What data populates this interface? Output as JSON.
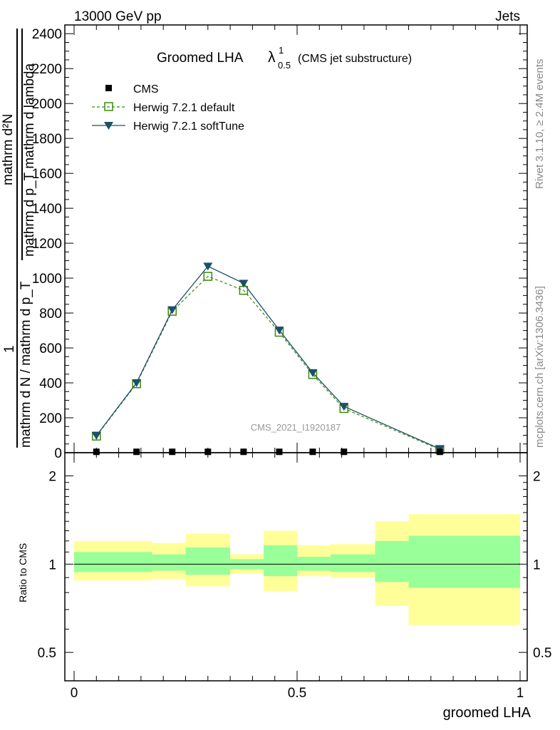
{
  "header": {
    "left": "13000 GeV pp",
    "right": "Jets"
  },
  "side": {
    "rivet": "Rivet 3.1.10, ≥ 2.4M events",
    "mcplots": "mcplots.cern.ch [arXiv:1306.3436]"
  },
  "chart_data": {
    "type": "line",
    "title_main": "Groomed LHA",
    "title_lambda": "λ",
    "title_sup": "1",
    "title_sub": "0.5",
    "title_note": "(CMS jet substructure)",
    "analysis_label": "CMS_2021_I1920187",
    "ylabel_num": "mathrm d²N",
    "ylabel_den": "mathrm d p_T mathrm d lambda",
    "ylabel_prefix": "1",
    "ylabel_prefix_den": "mathrm d N / mathrm d p_T",
    "xlabel": "groomed LHA",
    "ratio_ylabel": "Ratio to CMS",
    "xlim": [
      0,
      1
    ],
    "ylim": [
      0,
      2450
    ],
    "x_ticks": [
      "0",
      "0.5",
      "1"
    ],
    "y_ticks": [
      "0",
      "200",
      "400",
      "600",
      "800",
      "1000",
      "1200",
      "1400",
      "1600",
      "1800",
      "2000",
      "2200",
      "2400"
    ],
    "ratio_ylim": [
      0.4,
      2.4
    ],
    "ratio_ticks": [
      "0.5",
      "1",
      "2"
    ],
    "bin_edges": [
      0,
      0.075,
      0.175,
      0.25,
      0.35,
      0.425,
      0.5,
      0.575,
      0.675,
      1.0
    ],
    "x": [
      0.05,
      0.14,
      0.22,
      0.3,
      0.38,
      0.46,
      0.535,
      0.605,
      0.82
    ],
    "series": [
      {
        "name": "CMS",
        "values": [
          5,
          5,
          5,
          5,
          5,
          5,
          5,
          5,
          5
        ],
        "color": "#000000",
        "marker": "square"
      },
      {
        "name": "Herwig 7.2.1 default",
        "values": [
          95,
          395,
          810,
          1010,
          930,
          690,
          448,
          253,
          18
        ],
        "color": "#3a8a0c",
        "marker": "open-square"
      },
      {
        "name": "Herwig 7.2.1 softTune",
        "values": [
          98,
          400,
          818,
          1068,
          970,
          702,
          458,
          265,
          22
        ],
        "color": "#1c4f6a",
        "marker": "triangle-down"
      }
    ],
    "ratio_bands": [
      {
        "x0": 0.0,
        "x1": 0.175,
        "inner": [
          0.94,
          1.1
        ],
        "outer": [
          0.88,
          1.2
        ]
      },
      {
        "x0": 0.175,
        "x1": 0.25,
        "inner": [
          0.95,
          1.08
        ],
        "outer": [
          0.89,
          1.18
        ]
      },
      {
        "x0": 0.25,
        "x1": 0.35,
        "inner": [
          0.92,
          1.14
        ],
        "outer": [
          0.84,
          1.27
        ]
      },
      {
        "x0": 0.35,
        "x1": 0.425,
        "inner": [
          0.96,
          1.04
        ],
        "outer": [
          0.93,
          1.08
        ]
      },
      {
        "x0": 0.425,
        "x1": 0.5,
        "inner": [
          0.91,
          1.16
        ],
        "outer": [
          0.81,
          1.3
        ]
      },
      {
        "x0": 0.5,
        "x1": 0.575,
        "inner": [
          0.95,
          1.06
        ],
        "outer": [
          0.91,
          1.16
        ]
      },
      {
        "x0": 0.575,
        "x1": 0.675,
        "inner": [
          0.94,
          1.08
        ],
        "outer": [
          0.9,
          1.17
        ]
      },
      {
        "x0": 0.675,
        "x1": 0.75,
        "inner": [
          0.87,
          1.2
        ],
        "outer": [
          0.72,
          1.4
        ]
      },
      {
        "x0": 0.75,
        "x1": 1.0,
        "inner": [
          0.83,
          1.25
        ],
        "outer": [
          0.62,
          1.48
        ]
      }
    ],
    "band_colors": {
      "inner": "#99ff99",
      "outer": "#ffff99"
    }
  }
}
